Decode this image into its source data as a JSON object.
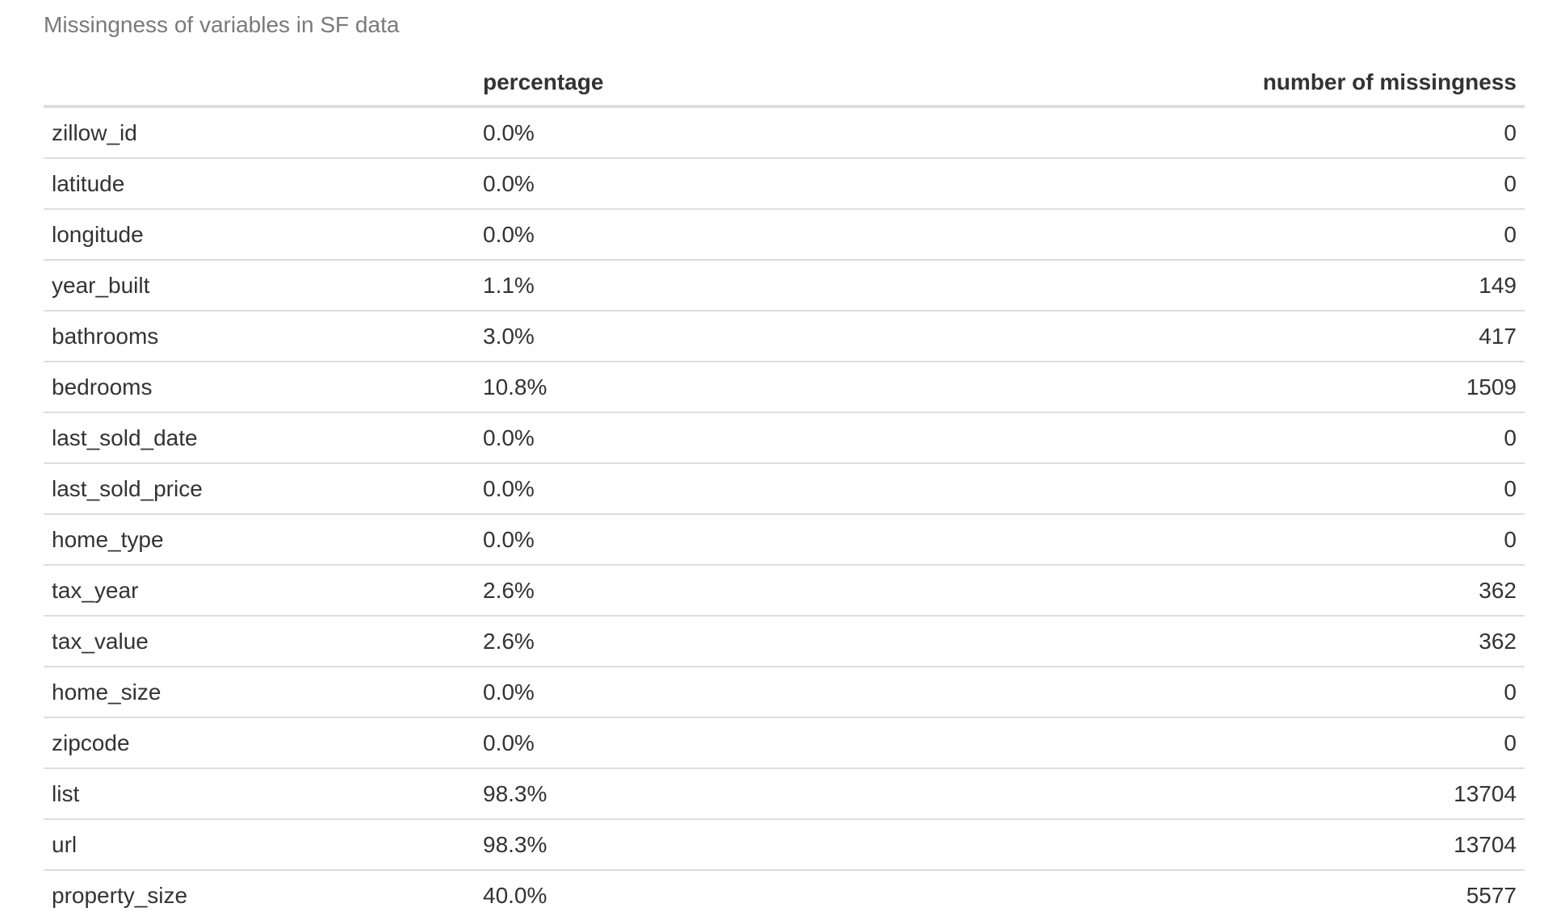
{
  "caption": "Missingness of variables in SF data",
  "table": {
    "headers": [
      "",
      "percentage",
      "number of missingness"
    ],
    "rows": [
      {
        "variable": "zillow_id",
        "percentage": "0.0%",
        "count": "0"
      },
      {
        "variable": "latitude",
        "percentage": "0.0%",
        "count": "0"
      },
      {
        "variable": "longitude",
        "percentage": "0.0%",
        "count": "0"
      },
      {
        "variable": "year_built",
        "percentage": "1.1%",
        "count": "149"
      },
      {
        "variable": "bathrooms",
        "percentage": "3.0%",
        "count": "417"
      },
      {
        "variable": "bedrooms",
        "percentage": "10.8%",
        "count": "1509"
      },
      {
        "variable": "last_sold_date",
        "percentage": "0.0%",
        "count": "0"
      },
      {
        "variable": "last_sold_price",
        "percentage": "0.0%",
        "count": "0"
      },
      {
        "variable": "home_type",
        "percentage": "0.0%",
        "count": "0"
      },
      {
        "variable": "tax_year",
        "percentage": "2.6%",
        "count": "362"
      },
      {
        "variable": "tax_value",
        "percentage": "2.6%",
        "count": "362"
      },
      {
        "variable": "home_size",
        "percentage": "0.0%",
        "count": "0"
      },
      {
        "variable": "zipcode",
        "percentage": "0.0%",
        "count": "0"
      },
      {
        "variable": "list",
        "percentage": "98.3%",
        "count": "13704"
      },
      {
        "variable": "url",
        "percentage": "98.3%",
        "count": "13704"
      },
      {
        "variable": "property_size",
        "percentage": "40.0%",
        "count": "5577"
      }
    ]
  }
}
